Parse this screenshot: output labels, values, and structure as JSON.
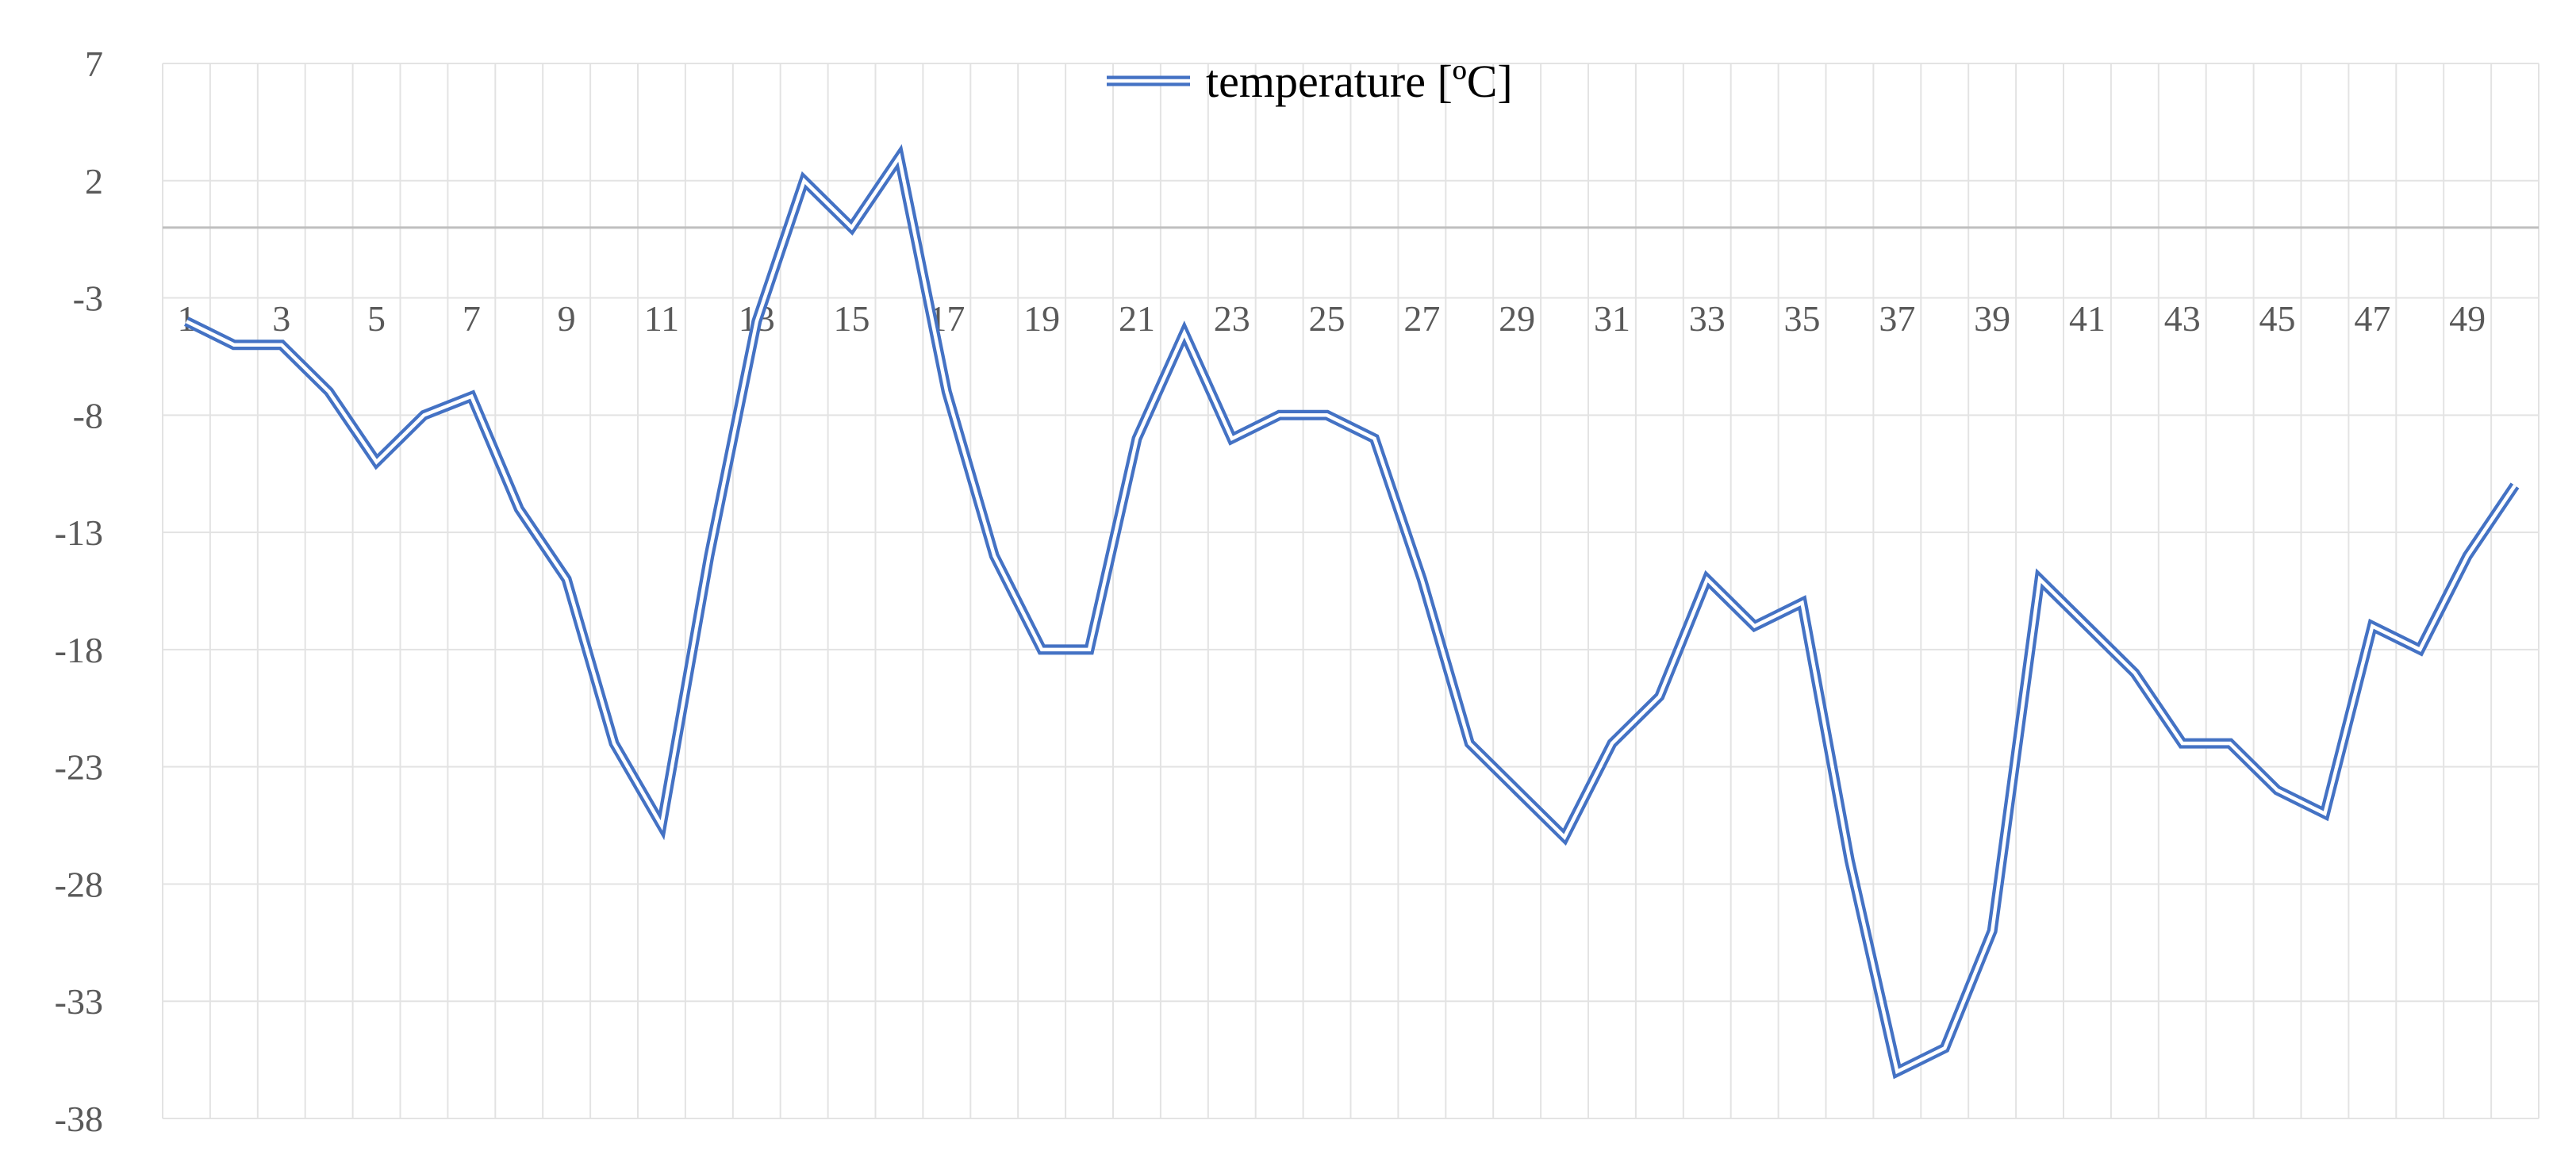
{
  "chart_data": {
    "type": "line",
    "title": "",
    "xlabel": "",
    "ylabel": "",
    "x": [
      1,
      2,
      3,
      4,
      5,
      6,
      7,
      8,
      9,
      10,
      11,
      12,
      13,
      14,
      15,
      16,
      17,
      18,
      19,
      20,
      21,
      22,
      23,
      24,
      25,
      26,
      27,
      28,
      29,
      30,
      31,
      32,
      33,
      34,
      35,
      36,
      37,
      38,
      39,
      40,
      41,
      42,
      43,
      44,
      45,
      46,
      47,
      48,
      49,
      50
    ],
    "x_tick_labels": [
      "1",
      "3",
      "5",
      "7",
      "9",
      "11",
      "13",
      "15",
      "17",
      "19",
      "21",
      "23",
      "25",
      "27",
      "29",
      "31",
      "33",
      "35",
      "37",
      "39",
      "41",
      "43",
      "45",
      "47",
      "49"
    ],
    "y_tick_values": [
      7,
      2,
      -3,
      -8,
      -13,
      -18,
      -23,
      -28,
      -33,
      -38
    ],
    "y_tick_labels": [
      "7",
      "2",
      "-3",
      "-8",
      "-13",
      "-18",
      "-23",
      "-28",
      "-33",
      "-38"
    ],
    "ylim": [
      -38,
      7
    ],
    "grid": true,
    "legend_position": "top-center",
    "series": [
      {
        "name": "temperature [ºC]",
        "color": "#4472C4",
        "values": [
          -4,
          -5,
          -5,
          -7,
          -10,
          -8,
          -7.2,
          -12,
          -15,
          -22,
          -25.5,
          -14,
          -4,
          2,
          0,
          3,
          -7,
          -14,
          -18,
          -18,
          -9,
          -4.5,
          -9,
          -8,
          -8,
          -9,
          -15,
          -22,
          -24,
          -26,
          -22,
          -20,
          -15,
          -17,
          -16,
          -27,
          -36,
          -35,
          -30,
          -15,
          -17,
          -19,
          -22,
          -22,
          -24,
          -25,
          -17,
          -18,
          -14,
          -11
        ]
      }
    ]
  }
}
